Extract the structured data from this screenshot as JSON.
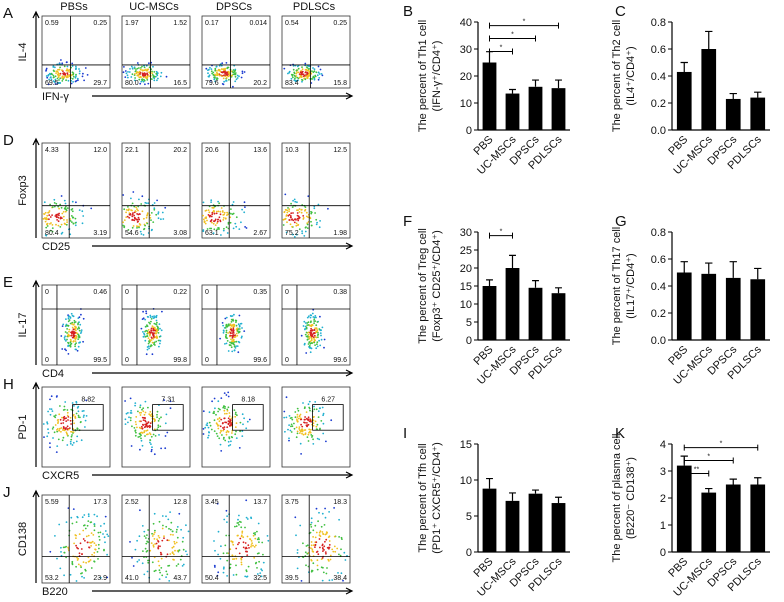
{
  "flow_panels": [
    {
      "letter": "A",
      "column_titles": [
        "PBSs",
        "UC-MSCs",
        "DPSCs",
        "PDLSCs"
      ],
      "y_label": "IL-4",
      "x_label": "IFN-γ",
      "plots": [
        [
          "0.59",
          "0.25",
          "69.5",
          "29.7"
        ],
        [
          "1.97",
          "1.52",
          "80.0",
          "16.5"
        ],
        [
          "0.17",
          "0.014",
          "79.6",
          "20.2"
        ],
        [
          "0.54",
          "0.25",
          "83.4",
          "15.8"
        ]
      ]
    },
    {
      "letter": "D",
      "y_label": "Foxp3",
      "x_label": "CD25",
      "plots": [
        [
          "4.33",
          "12.0",
          "80.4",
          "3.19"
        ],
        [
          "22.1",
          "20.2",
          "54.6",
          "3.08"
        ],
        [
          "20.6",
          "13.6",
          "63.1",
          "2.67"
        ],
        [
          "10.3",
          "12.5",
          "75.2",
          "1.98"
        ]
      ]
    },
    {
      "letter": "E",
      "y_label": "IL-17",
      "x_label": "CD4",
      "plots": [
        [
          "0",
          "0.46",
          "0",
          "99.5"
        ],
        [
          "0",
          "0.22",
          "0",
          "99.8"
        ],
        [
          "0",
          "0.35",
          "0",
          "99.6"
        ],
        [
          "0",
          "0.38",
          "0",
          "99.6"
        ]
      ]
    },
    {
      "letter": "H",
      "y_label": "PD-1",
      "x_label": "CXCR5",
      "plots": [
        [
          "8.82"
        ],
        [
          "7.31"
        ],
        [
          "8.18"
        ],
        [
          "6.27"
        ]
      ]
    },
    {
      "letter": "J",
      "y_label": "CD138",
      "x_label": "B220",
      "plots": [
        [
          "5.59",
          "17.3",
          "53.2",
          "23.9"
        ],
        [
          "2.52",
          "12.8",
          "41.0",
          "43.7"
        ],
        [
          "3.45",
          "13.7",
          "50.4",
          "32.5"
        ],
        [
          "3.75",
          "18.3",
          "39.5",
          "38.4"
        ]
      ]
    }
  ],
  "chart_data": [
    {
      "type": "bar",
      "letter": "B",
      "y_label": [
        "The percent of Th1 cell",
        "(IFN-γ⁺/CD4⁺)"
      ],
      "categories": [
        "PBS",
        "UC-MSCs",
        "DPSCs",
        "PDLSCs"
      ],
      "values": [
        25,
        13.5,
        16,
        15.5
      ],
      "errors": [
        4,
        1.5,
        2.5,
        3
      ],
      "color": "#000000",
      "ylim": [
        0,
        40
      ],
      "yticks": [
        0,
        10,
        20,
        30,
        40
      ],
      "comparisons": [
        {
          "groups": [
            "PBS",
            "UC-MSCs"
          ],
          "label": "*"
        },
        {
          "groups": [
            "PBS",
            "DPSCs"
          ],
          "label": "*"
        },
        {
          "groups": [
            "PBS",
            "PDLSCs"
          ],
          "label": "*"
        }
      ]
    },
    {
      "type": "bar",
      "letter": "C",
      "y_label": [
        "The percent of Th2 cell",
        "(IL4⁺/CD4⁺)"
      ],
      "categories": [
        "PBS",
        "UC-MSCs",
        "DPSCs",
        "PDLSCs"
      ],
      "values": [
        0.43,
        0.6,
        0.23,
        0.24
      ],
      "errors": [
        0.07,
        0.13,
        0.04,
        0.04
      ],
      "color": "#000000",
      "ylim": [
        0,
        0.8
      ],
      "yticks": [
        {
          "value": 0,
          "label": "0.0"
        },
        0.2,
        0.4,
        0.6,
        0.8
      ]
    },
    {
      "type": "bar",
      "letter": "F",
      "y_label": [
        "The percent of Treg cell",
        "(Foxp3⁺ CD25⁺/CD4⁺)"
      ],
      "categories": [
        "PBS",
        "UC-MSCs",
        "DPSCs",
        "PDLSCs"
      ],
      "values": [
        15,
        20,
        14.5,
        13
      ],
      "errors": [
        1.7,
        3.5,
        2,
        1.5
      ],
      "color": "#000000",
      "ylim": [
        0,
        30
      ],
      "yticks": [
        0,
        5,
        10,
        15,
        20,
        25,
        30
      ],
      "comparisons": [
        {
          "groups": [
            "PBS",
            "UC-MSCs"
          ],
          "label": "*"
        }
      ]
    },
    {
      "type": "bar",
      "letter": "G",
      "y_label": [
        "The percent of Th17 cell",
        "(IL17⁺/CD4⁺)"
      ],
      "categories": [
        "PBS",
        "UC-MSCs",
        "DPSCs",
        "PDLSCs"
      ],
      "values": [
        0.5,
        0.49,
        0.46,
        0.45
      ],
      "errors": [
        0.08,
        0.08,
        0.12,
        0.08
      ],
      "color": "#000000",
      "ylim": [
        0,
        0.8
      ],
      "yticks": [
        {
          "value": 0,
          "label": "0.0"
        },
        0.2,
        0.4,
        0.6,
        0.8
      ]
    },
    {
      "type": "bar",
      "letter": "I",
      "y_label": [
        "The percent of Tfh cell",
        "(PD1⁺ CXCR5⁺/CD4⁺)"
      ],
      "categories": [
        "PBS",
        "UC-MSCs",
        "DPSCs",
        "PDLSCs"
      ],
      "values": [
        8.8,
        7.1,
        8.1,
        6.8
      ],
      "errors": [
        1.4,
        1.1,
        0.5,
        0.8
      ],
      "color": "#000000",
      "ylim": [
        0,
        15
      ],
      "yticks": [
        0,
        5,
        10,
        15
      ]
    },
    {
      "type": "bar",
      "letter": "K",
      "y_label": [
        "The percent of plasma cell",
        "(B220⁻ CD138⁺)"
      ],
      "categories": [
        "PBS",
        "UC-MSCs",
        "DPSCs",
        "PDLSCs"
      ],
      "values": [
        3.2,
        2.2,
        2.5,
        2.5
      ],
      "errors": [
        0.35,
        0.15,
        0.2,
        0.25
      ],
      "color": "#000000",
      "ylim": [
        0,
        4
      ],
      "yticks": [
        0,
        1,
        2,
        3,
        4
      ],
      "comparisons": [
        {
          "groups": [
            "PBS",
            "UC-MSCs"
          ],
          "label": "**"
        },
        {
          "groups": [
            "PBS",
            "DPSCs"
          ],
          "label": "*"
        },
        {
          "groups": [
            "PBS",
            "PDLSCs"
          ],
          "label": "*"
        }
      ]
    }
  ]
}
